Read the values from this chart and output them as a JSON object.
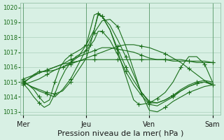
{
  "background_color": "#d8f0e4",
  "grid_color": "#a0c8b0",
  "line_color": "#1a6e1a",
  "marker": "+",
  "markersize": 4,
  "linewidth": 0.8,
  "xlabel": "Pression niveau de la mer( hPa )",
  "xlabel_fontsize": 8,
  "yticks": [
    1013,
    1014,
    1015,
    1016,
    1017,
    1018,
    1019,
    1020
  ],
  "ylim": [
    1012.8,
    1020.3
  ],
  "xtick_labels": [
    "Mer",
    "Jeu",
    "Ven",
    "Sam"
  ],
  "xtick_positions": [
    0,
    48,
    96,
    144
  ],
  "xlim": [
    -2,
    150
  ],
  "series": [
    {
      "x": [
        0,
        6,
        12,
        18,
        24,
        30,
        36,
        42,
        48,
        54,
        60,
        66,
        72,
        78,
        84,
        90,
        96,
        102,
        108,
        114,
        120,
        126,
        132,
        138,
        144
      ],
      "y": [
        1014.8,
        1015.0,
        1015.2,
        1015.5,
        1015.8,
        1016.0,
        1016.2,
        1016.4,
        1016.6,
        1016.8,
        1017.0,
        1017.2,
        1017.4,
        1017.5,
        1017.5,
        1017.4,
        1017.3,
        1017.1,
        1016.9,
        1016.6,
        1016.3,
        1015.9,
        1015.5,
        1015.1,
        1014.8
      ]
    },
    {
      "x": [
        0,
        6,
        12,
        18,
        24,
        30,
        36,
        42,
        48,
        51,
        54,
        57,
        60,
        66,
        72,
        78,
        84,
        90,
        96,
        102,
        108,
        114,
        120,
        126,
        132,
        138,
        144
      ],
      "y": [
        1015.0,
        1014.7,
        1014.5,
        1014.3,
        1014.2,
        1014.4,
        1015.0,
        1015.8,
        1016.6,
        1017.5,
        1018.5,
        1019.5,
        1019.4,
        1018.8,
        1017.8,
        1016.7,
        1015.5,
        1014.3,
        1013.6,
        1013.6,
        1013.8,
        1014.1,
        1014.5,
        1014.8,
        1015.0,
        1015.1,
        1015.0
      ]
    },
    {
      "x": [
        0,
        6,
        12,
        18,
        24,
        30,
        36,
        42,
        48,
        54,
        60,
        66,
        72,
        78,
        84,
        90,
        96,
        102,
        108,
        114,
        120,
        126,
        132,
        138,
        144
      ],
      "y": [
        1015.0,
        1014.7,
        1014.4,
        1014.2,
        1014.0,
        1014.5,
        1015.2,
        1016.2,
        1017.2,
        1018.3,
        1019.1,
        1019.2,
        1018.7,
        1017.4,
        1015.8,
        1014.2,
        1013.1,
        1013.0,
        1013.3,
        1013.7,
        1014.0,
        1014.3,
        1014.5,
        1014.7,
        1014.8
      ]
    },
    {
      "x": [
        0,
        4,
        8,
        12,
        16,
        20,
        24,
        28,
        32,
        36,
        40,
        44,
        48,
        54,
        57,
        60,
        66,
        72,
        78,
        84,
        90,
        96,
        102,
        108,
        114,
        120,
        126,
        132,
        138,
        144
      ],
      "y": [
        1015.1,
        1014.8,
        1014.5,
        1014.0,
        1013.6,
        1013.8,
        1015.0,
        1016.0,
        1016.5,
        1016.8,
        1017.0,
        1017.2,
        1017.5,
        1018.5,
        1019.6,
        1019.4,
        1018.5,
        1017.2,
        1016.0,
        1015.1,
        1014.3,
        1013.7,
        1013.6,
        1013.8,
        1014.1,
        1014.4,
        1014.7,
        1014.9,
        1015.0,
        1014.8
      ]
    },
    {
      "x": [
        0,
        4,
        8,
        12,
        16,
        20,
        24,
        28,
        32,
        36,
        40,
        44,
        48,
        54,
        57,
        60,
        66,
        72,
        78,
        84,
        90,
        96,
        102,
        108,
        114,
        120,
        126,
        132,
        138,
        144
      ],
      "y": [
        1014.9,
        1014.5,
        1014.0,
        1013.6,
        1013.3,
        1013.5,
        1014.2,
        1015.1,
        1015.8,
        1016.3,
        1016.7,
        1016.9,
        1017.1,
        1017.8,
        1018.4,
        1018.4,
        1017.8,
        1016.8,
        1015.7,
        1014.8,
        1014.1,
        1013.5,
        1013.4,
        1013.7,
        1014.0,
        1014.4,
        1014.7,
        1014.9,
        1015.0,
        1014.9
      ]
    },
    {
      "x": [
        0,
        6,
        12,
        18,
        24,
        30,
        36,
        42,
        48,
        54,
        60,
        66,
        72,
        78,
        84,
        90,
        96,
        102,
        108,
        114,
        120,
        126,
        132,
        138,
        144
      ],
      "y": [
        1015.2,
        1015.4,
        1015.6,
        1015.8,
        1016.0,
        1016.2,
        1016.5,
        1016.7,
        1016.9,
        1017.1,
        1017.3,
        1017.3,
        1017.2,
        1017.1,
        1017.0,
        1016.8,
        1016.6,
        1016.5,
        1016.5,
        1016.4,
        1016.4,
        1016.4,
        1016.3,
        1016.3,
        1016.3
      ]
    },
    {
      "x": [
        0,
        4,
        8,
        12,
        18,
        24,
        30,
        36,
        42,
        48,
        51,
        54,
        57,
        60,
        66,
        72,
        78,
        84,
        88,
        90,
        96,
        102,
        108,
        114,
        120,
        126,
        132,
        138,
        144
      ],
      "y": [
        1014.9,
        1015.2,
        1015.5,
        1015.7,
        1015.7,
        1015.8,
        1016.0,
        1016.3,
        1016.7,
        1017.5,
        1018.5,
        1019.5,
        1019.6,
        1019.4,
        1018.5,
        1017.0,
        1015.4,
        1013.8,
        1013.5,
        1013.5,
        1013.6,
        1013.9,
        1014.3,
        1015.0,
        1016.0,
        1016.7,
        1016.7,
        1016.2,
        1015.0
      ]
    },
    {
      "x": [
        0,
        6,
        12,
        18,
        24,
        30,
        36,
        42,
        48,
        54,
        60,
        66,
        72,
        78,
        84,
        90,
        96,
        102,
        108,
        114,
        120,
        126,
        132,
        138,
        144
      ],
      "y": [
        1015.0,
        1015.3,
        1015.6,
        1015.8,
        1016.0,
        1016.2,
        1016.3,
        1016.4,
        1016.5,
        1016.5,
        1016.5,
        1016.5,
        1016.5,
        1016.5,
        1016.5,
        1016.5,
        1016.5,
        1016.5,
        1016.5,
        1016.5,
        1016.5,
        1016.4,
        1016.4,
        1016.4,
        1016.3
      ]
    }
  ]
}
